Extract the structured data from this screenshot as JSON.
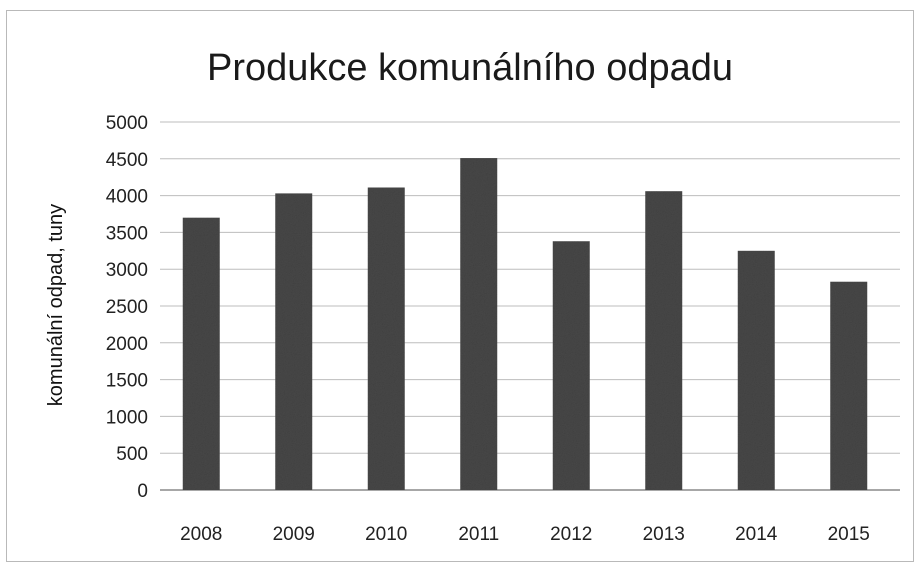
{
  "chart_data": {
    "type": "bar",
    "title": "Produkce komunálního odpadu",
    "xlabel": "",
    "ylabel": "komunální odpad, tuny",
    "categories": [
      "2008",
      "2009",
      "2010",
      "2011",
      "2012",
      "2013",
      "2014",
      "2015"
    ],
    "values": [
      3700,
      4030,
      4110,
      4510,
      3380,
      4060,
      3250,
      2830
    ],
    "ylim": [
      0,
      5000
    ],
    "yticks": [
      0,
      500,
      1000,
      1500,
      2000,
      2500,
      3000,
      3500,
      4000,
      4500,
      5000
    ],
    "grid": true,
    "legend": "none",
    "bar_color": "#474747"
  }
}
